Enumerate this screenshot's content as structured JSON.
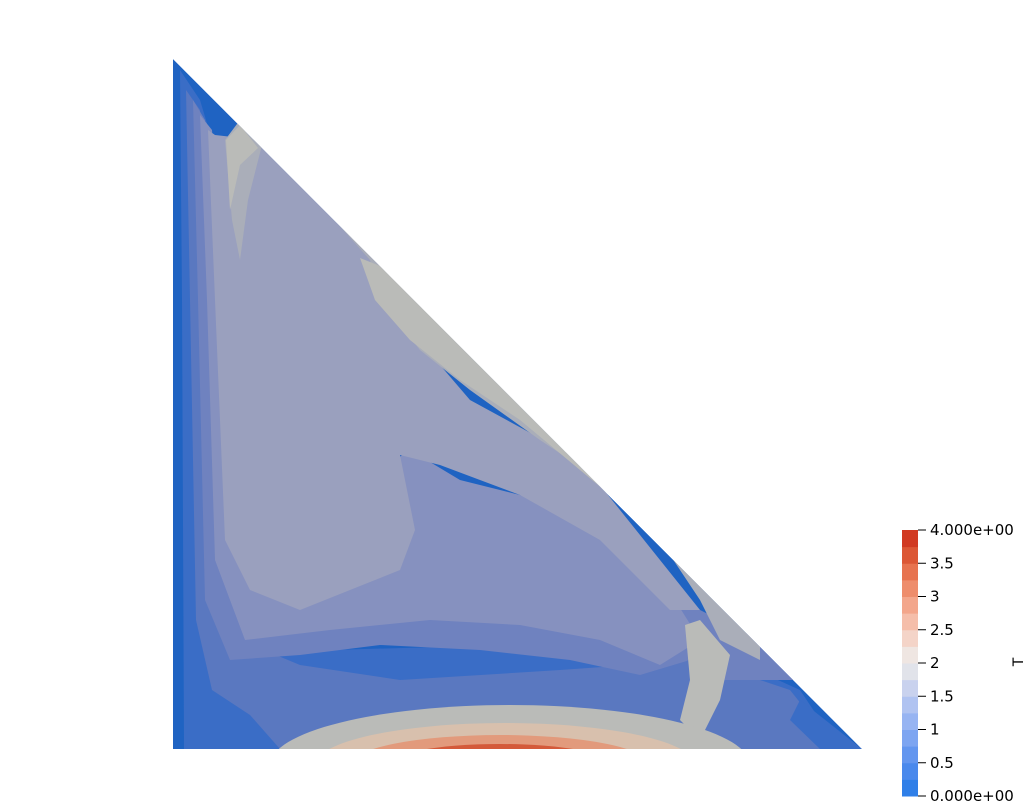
{
  "field": {
    "name": "T",
    "range": [
      0,
      4
    ],
    "color_levels": 16
  },
  "colorbar": {
    "title": "T",
    "ticks": [
      {
        "value": 4,
        "label": "4.000e+00"
      },
      {
        "value": 3.5,
        "label": "3.5"
      },
      {
        "value": 3,
        "label": "3"
      },
      {
        "value": 2.5,
        "label": "2.5"
      },
      {
        "value": 2,
        "label": "2"
      },
      {
        "value": 1.5,
        "label": "1.5"
      },
      {
        "value": 1,
        "label": "1"
      },
      {
        "value": 0.5,
        "label": "0.5"
      },
      {
        "value": 0,
        "label": "0.000e+00"
      }
    ],
    "colors": [
      "#2f7fe8",
      "#4a89ec",
      "#6396ef",
      "#7da5f1",
      "#97b4f2",
      "#b0c3f1",
      "#c9d2ee",
      "#e1e3ea",
      "#efe6e2",
      "#f4d4c8",
      "#f5beaa",
      "#f3a68b",
      "#ee8d6c",
      "#e7734f",
      "#dc5735",
      "#d13a22"
    ]
  },
  "contour_colors": {
    "edge_blue": "#1f63c2",
    "band_1": "#3a6dc6",
    "band_2": "#5a78c0",
    "band_3": "#6f82bf",
    "band_4": "#8691bf",
    "band_5": "#9aa0be",
    "band_6": "#aaaeb9",
    "band_7": "#babbb8",
    "warm_1": "#d8c0ad",
    "warm_2": "#e29a7c",
    "warm_3": "#d45a3a",
    "warm_4": "#c6411f"
  }
}
